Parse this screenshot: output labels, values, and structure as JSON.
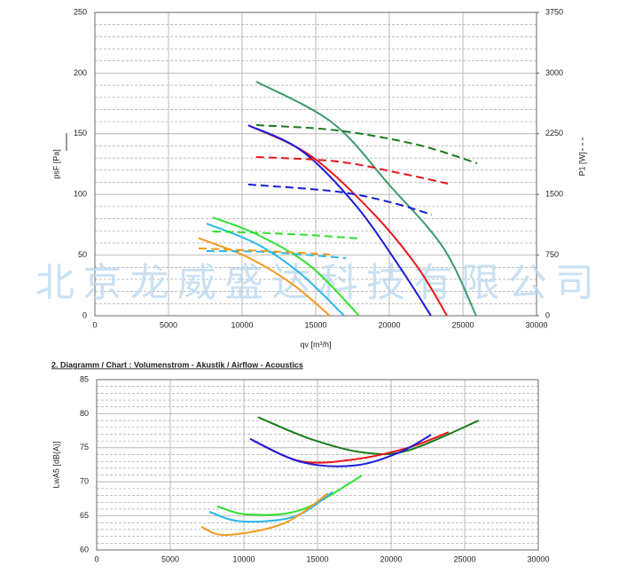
{
  "chart_data": [
    {
      "type": "line",
      "xlabel": "qv [m³/h]",
      "ylabel": "psF [Pa]",
      "y2label": "P1 [W]",
      "xlim": [
        0,
        30000
      ],
      "xticks": [
        0,
        5000,
        10000,
        15000,
        20000,
        25000,
        30000
      ],
      "ylim": [
        0,
        250
      ],
      "yticks": [
        0,
        50,
        100,
        150,
        200,
        250
      ],
      "y2lim": [
        0,
        3750
      ],
      "y2ticks": [
        0,
        750,
        1500,
        2250,
        3000,
        3750
      ],
      "grid": true,
      "watermark": "北京龙威盛达科技有限公司",
      "series": [
        {
          "color": "#3d9a6c",
          "x": [
            10960,
            16140,
            20060,
            23670,
            25900
          ],
          "values": [
            193,
            159,
            107,
            56,
            0
          ]
        },
        {
          "color": "#e8161b",
          "x": [
            10420,
            14640,
            18860,
            21870,
            23920
          ],
          "values": [
            157,
            132,
            85,
            41,
            0
          ]
        },
        {
          "color": "#1a1adc",
          "x": [
            10420,
            14040,
            17650,
            20660,
            22830
          ],
          "values": [
            157,
            136,
            92,
            41,
            0
          ]
        },
        {
          "color": "#2fe02f",
          "x": [
            8010,
            11020,
            14640,
            17950
          ],
          "values": [
            81,
            67,
            41,
            0
          ]
        },
        {
          "color": "#2ab8ec",
          "x": [
            7590,
            11020,
            14040,
            16930
          ],
          "values": [
            76,
            59,
            34,
            0
          ]
        },
        {
          "color": "#f39a1e",
          "x": [
            7050,
            10420,
            13430,
            15960
          ],
          "values": [
            64,
            48,
            26,
            0
          ]
        },
        {
          "color": "#1a7a1a",
          "axis": "y2",
          "dashed": true,
          "x": [
            10960,
            16440,
            21870,
            25960
          ],
          "values": [
            2357,
            2292,
            2116,
            1886
          ]
        },
        {
          "color": "#e8161b",
          "axis": "y2",
          "dashed": true,
          "x": [
            10960,
            16440,
            20660,
            23980
          ],
          "values": [
            1963,
            1908,
            1765,
            1634
          ]
        },
        {
          "color": "#1a1adc",
          "axis": "y2",
          "dashed": true,
          "x": [
            10420,
            16440,
            20060,
            22890
          ],
          "values": [
            1623,
            1535,
            1404,
            1250
          ]
        },
        {
          "color": "#2fe02f",
          "axis": "y2",
          "dashed": true,
          "x": [
            8010,
            13430,
            18010
          ],
          "values": [
            1042,
            1009,
            954
          ]
        },
        {
          "color": "#2ab8ec",
          "axis": "y2",
          "dashed": true,
          "x": [
            7590,
            11630,
            17050
          ],
          "values": [
            800,
            789,
            713
          ]
        },
        {
          "color": "#f39a1e",
          "axis": "y2",
          "dashed": true,
          "x": [
            7050,
            11630,
            15960
          ],
          "values": [
            833,
            800,
            757
          ]
        }
      ]
    },
    {
      "type": "line",
      "title": "2. Diagramm / Chart :   Volumenstrom - Akustik / Airflow - Acoustics",
      "ylabel": "LwA5 [dB(A)]",
      "xlim": [
        0,
        30000
      ],
      "xticks": [
        0,
        5000,
        10000,
        15000,
        20000,
        25000,
        30000
      ],
      "ylim": [
        60,
        85
      ],
      "yticks": [
        60,
        65,
        70,
        75,
        80,
        85
      ],
      "grid": true,
      "series": [
        {
          "color": "#1a7a1a",
          "x": [
            10960,
            14520,
            18130,
            21140,
            25960
          ],
          "values": [
            79.5,
            76.3,
            74.3,
            74.6,
            79.0
          ]
        },
        {
          "color": "#e8161b",
          "x": [
            10660,
            13910,
            17530,
            21140,
            23910
          ],
          "values": [
            76.0,
            73.0,
            73.3,
            75.0,
            77.3
          ]
        },
        {
          "color": "#1a1adc",
          "x": [
            10420,
            13910,
            17530,
            20540,
            22710
          ],
          "values": [
            76.3,
            72.9,
            72.4,
            74.3,
            76.9
          ]
        },
        {
          "color": "#2fe02f",
          "x": [
            8190,
            10300,
            13910,
            18010
          ],
          "values": [
            66.4,
            65.2,
            65.9,
            70.9
          ]
        },
        {
          "color": "#2ab8ec",
          "x": [
            7650,
            9820,
            13430,
            16020
          ],
          "values": [
            65.6,
            64.2,
            64.9,
            68.5
          ]
        },
        {
          "color": "#f39a1e",
          "x": [
            7110,
            8800,
            12710,
            15720
          ],
          "values": [
            63.4,
            62.2,
            63.9,
            68.3
          ]
        }
      ]
    }
  ]
}
